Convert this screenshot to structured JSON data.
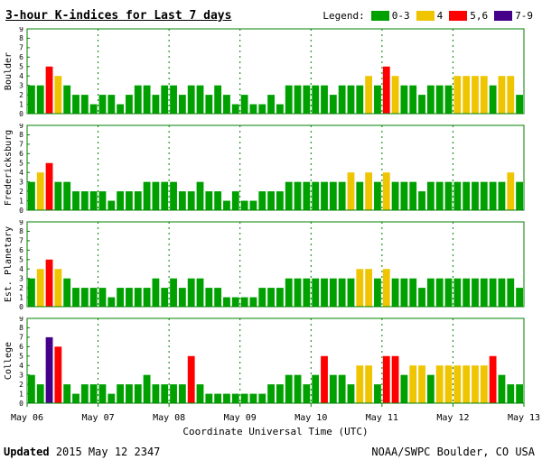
{
  "title": "3-hour K-indices for Last 7 days",
  "legend": {
    "label": "Legend:",
    "items": [
      {
        "label": "0-3",
        "color": "#00A000"
      },
      {
        "label": "4",
        "color": "#EEC500"
      },
      {
        "label": "5,6",
        "color": "#FF0000"
      },
      {
        "label": "7-9",
        "color": "#440088"
      }
    ]
  },
  "footer": {
    "updated_label": "Updated",
    "updated_value": "2015 May 12 2347",
    "credit": "NOAA/SWPC Boulder, CO USA"
  },
  "chart_data": {
    "type": "bar",
    "title": "3-hour K-indices for Last 7 days",
    "xlabel": "Coordinate Universal Time (UTC)",
    "x_ticks": [
      "May 06",
      "May 07",
      "May 08",
      "May 09",
      "May 10",
      "May 11",
      "May 12",
      "May 13"
    ],
    "y_ticks": [
      0,
      1,
      2,
      3,
      4,
      5,
      6,
      7,
      8,
      9
    ],
    "ylim": [
      0,
      9
    ],
    "bars_per_day": 8,
    "days": 7,
    "color_rules": {
      "0-3": "green",
      "4": "yellow",
      "5-6": "red",
      "7-9": "purple"
    },
    "colors": {
      "green": "#00A000",
      "yellow": "#EEC500",
      "red": "#FF0000",
      "purple": "#440088",
      "frame": "#008000"
    },
    "series": [
      {
        "name": "Boulder",
        "values": [
          3,
          3,
          5,
          4,
          3,
          2,
          2,
          1,
          2,
          2,
          1,
          2,
          3,
          3,
          2,
          3,
          3,
          2,
          3,
          3,
          2,
          3,
          2,
          1,
          2,
          1,
          1,
          2,
          1,
          3,
          3,
          3,
          3,
          3,
          2,
          3,
          3,
          3,
          4,
          3,
          5,
          4,
          3,
          3,
          2,
          3,
          3,
          3,
          4,
          4,
          4,
          4,
          3,
          4,
          4,
          2
        ]
      },
      {
        "name": "Fredericksburg",
        "values": [
          3,
          4,
          5,
          3,
          3,
          2,
          2,
          2,
          2,
          1,
          2,
          2,
          2,
          3,
          3,
          3,
          3,
          2,
          2,
          3,
          2,
          2,
          1,
          2,
          1,
          1,
          2,
          2,
          2,
          3,
          3,
          3,
          3,
          3,
          3,
          3,
          4,
          3,
          4,
          3,
          4,
          3,
          3,
          3,
          2,
          3,
          3,
          3,
          3,
          3,
          3,
          3,
          3,
          3,
          4,
          3
        ]
      },
      {
        "name": "Est. Planetary",
        "values": [
          3,
          4,
          5,
          4,
          3,
          2,
          2,
          2,
          2,
          1,
          2,
          2,
          2,
          2,
          3,
          2,
          3,
          2,
          3,
          3,
          2,
          2,
          1,
          1,
          1,
          1,
          2,
          2,
          2,
          3,
          3,
          3,
          3,
          3,
          3,
          3,
          3,
          4,
          4,
          3,
          4,
          3,
          3,
          3,
          2,
          3,
          3,
          3,
          3,
          3,
          3,
          3,
          3,
          3,
          3,
          2
        ]
      },
      {
        "name": "College",
        "values": [
          3,
          2,
          7,
          6,
          2,
          1,
          2,
          2,
          2,
          1,
          2,
          2,
          2,
          3,
          2,
          2,
          2,
          2,
          5,
          2,
          1,
          1,
          1,
          1,
          1,
          1,
          1,
          2,
          2,
          3,
          3,
          2,
          3,
          5,
          3,
          3,
          2,
          4,
          4,
          2,
          5,
          5,
          3,
          4,
          4,
          3,
          4,
          4,
          4,
          4,
          4,
          4,
          5,
          3,
          2,
          2
        ]
      }
    ]
  }
}
